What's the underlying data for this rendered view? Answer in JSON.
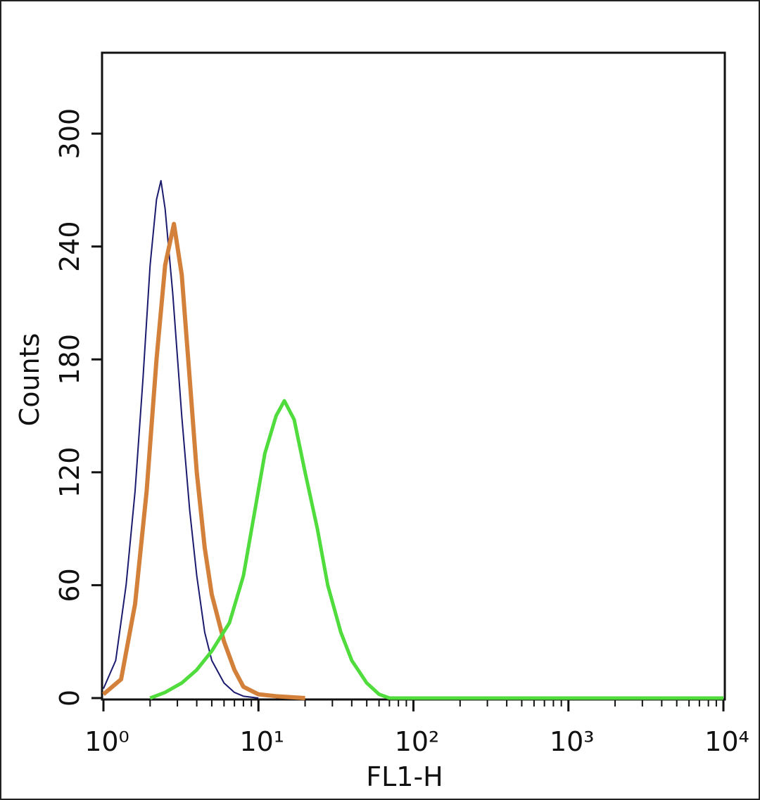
{
  "chart_data": {
    "type": "line",
    "x_label": "FL1-H",
    "y_label": "Counts",
    "xscale": "log",
    "xlim": [
      1,
      10000
    ],
    "xticks": [
      {
        "value": 1,
        "label": "10⁰"
      },
      {
        "value": 10,
        "label": "10¹"
      },
      {
        "value": 100,
        "label": "10²"
      },
      {
        "value": 1000,
        "label": "10³"
      },
      {
        "value": 10000,
        "label": "10⁴"
      }
    ],
    "ylim": [
      0,
      343
    ],
    "yticks": [
      0,
      60,
      120,
      180,
      240,
      300
    ],
    "series": [
      {
        "color": "#1a1a6e",
        "width": 2,
        "x": [
          1.0,
          1.2,
          1.4,
          1.6,
          1.8,
          2.0,
          2.2,
          2.35,
          2.5,
          2.8,
          3.2,
          3.6,
          4.0,
          4.5,
          5.0,
          6.0,
          7.0,
          8.0,
          10
        ],
        "values": [
          5,
          20,
          60,
          110,
          170,
          230,
          265,
          275,
          260,
          215,
          150,
          100,
          65,
          35,
          20,
          8,
          3,
          1,
          0
        ]
      },
      {
        "color": "#d2803a",
        "width": 6,
        "x": [
          1.0,
          1.3,
          1.6,
          1.9,
          2.2,
          2.5,
          2.85,
          3.2,
          3.6,
          4.0,
          4.5,
          5.0,
          6.0,
          7.0,
          8.0,
          10,
          13,
          20
        ],
        "values": [
          2,
          10,
          50,
          110,
          180,
          230,
          252,
          225,
          170,
          120,
          80,
          55,
          30,
          15,
          6,
          2,
          1,
          0
        ]
      },
      {
        "color": "#4fdc3c",
        "width": 5,
        "x": [
          2.0,
          2.5,
          3.2,
          4.0,
          5.0,
          6.5,
          8,
          9.5,
          11,
          13,
          14.7,
          17,
          20,
          24,
          28,
          34,
          40,
          50,
          60,
          70,
          10000
        ],
        "values": [
          0,
          3,
          8,
          15,
          25,
          40,
          65,
          100,
          130,
          150,
          158,
          148,
          120,
          90,
          60,
          35,
          20,
          8,
          2,
          0,
          0
        ]
      }
    ]
  }
}
